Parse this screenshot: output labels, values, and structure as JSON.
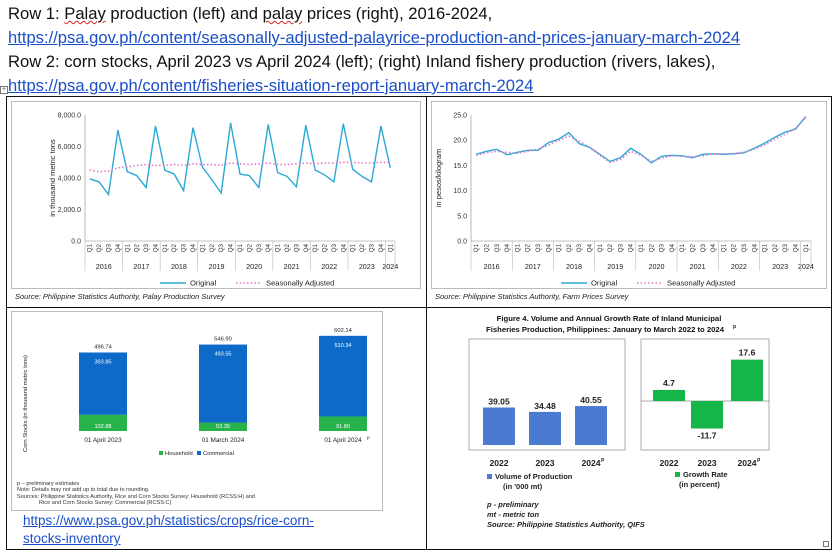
{
  "header": {
    "row1_prefix": "Row 1: ",
    "row1_word1": "Palay",
    "row1_mid": " production (left) and ",
    "row1_word2": "palay",
    "row1_suffix": " prices (right), 2016-2024,",
    "row1_link": "https://psa.gov.ph/content/seasonally-adjusted-palayrice-production-and-prices-january-march-2024",
    "row2_text": "Row 2: corn stocks, April 2023 vs April 2024 (left); (right) Inland fishery production (rivers, lakes),",
    "row2_link": "https://psa.gov.ph/content/fisheries-situation-report-january-march-2024"
  },
  "panel1": {
    "source": "Source: Philippine Statistics Authority, Palay Production Survey"
  },
  "panel2": {
    "source": "Source: Philippine Statistics Authority, Farm Prices Survey"
  },
  "panel3": {
    "footnote1": "p – preliminary estimates",
    "footnote2": "Note: Details may not add up to total due to rounding.",
    "footnote3": "Sources: Philippine Statistics Authority, Rice and Corn Stocks Survey: Household (RCSS:H) and",
    "footnote4": "Rice and Corn Stocks Survey: Commercial (RCSS:C)",
    "link_line1": "https://www.psa.gov.ph/statistics/crops/rice-corn-",
    "link_line2": "stocks-inventory"
  },
  "panel4": {
    "notes1": "p - preliminary",
    "notes2": "mt - metric ton",
    "notes3": "Source: Philippine Statistics Authority, QIFS"
  },
  "chart_data": [
    {
      "type": "line",
      "ylabel": "in thousand metric tons",
      "ylim": [
        0,
        8000
      ],
      "yticks": [
        "0.0",
        "2,000.0",
        "4,000.0",
        "6,000.0",
        "8,000.0"
      ],
      "quarters": [
        "Q1",
        "Q2",
        "Q3",
        "Q4"
      ],
      "years": [
        "2016",
        "2017",
        "2018",
        "2019",
        "2020",
        "2021",
        "2022",
        "2023",
        "2024"
      ],
      "grid": false,
      "legend_position": "bottom",
      "series": [
        {
          "name": "Original",
          "color": "#2aa9d6",
          "values": [
            3950,
            3750,
            2950,
            7050,
            4400,
            4150,
            3400,
            7300,
            4500,
            4250,
            3200,
            7200,
            4700,
            3900,
            3050,
            7500,
            4250,
            4150,
            3400,
            7400,
            4350,
            4100,
            3450,
            7350,
            4500,
            4200,
            3750,
            7450,
            4550,
            4100,
            3750,
            7300,
            4650
          ]
        },
        {
          "name": "Seasonally Adjusted",
          "color": "#e178c9",
          "values": [
            4500,
            4400,
            4450,
            4650,
            4700,
            4800,
            4850,
            4800,
            4800,
            4850,
            4800,
            4900,
            4850,
            4850,
            4800,
            4950,
            4900,
            4850,
            4900,
            4950,
            4850,
            4850,
            4900,
            4950,
            4900,
            4950,
            4950,
            5000,
            5000,
            4950,
            4950,
            5000,
            5000
          ]
        }
      ]
    },
    {
      "type": "line",
      "ylabel": "in pesos/kilogram",
      "ylim": [
        0,
        25
      ],
      "yticks": [
        "0.0",
        "5.0",
        "10.0",
        "15.0",
        "20.0",
        "25.0"
      ],
      "quarters": [
        "Q1",
        "Q2",
        "Q3",
        "Q4"
      ],
      "years": [
        "2016",
        "2017",
        "2018",
        "2019",
        "2020",
        "2021",
        "2022",
        "2023",
        "2024"
      ],
      "grid": false,
      "legend_position": "bottom",
      "series": [
        {
          "name": "Original",
          "color": "#2aa9d6",
          "values": [
            17.2,
            17.8,
            18.2,
            17.1,
            17.6,
            18.0,
            18.0,
            19.5,
            20.2,
            21.5,
            19.3,
            18.6,
            17.2,
            15.8,
            16.5,
            18.4,
            17.2,
            15.5,
            16.8,
            17.0,
            16.9,
            16.5,
            17.2,
            17.3,
            17.2,
            17.3,
            17.5,
            18.4,
            19.4,
            20.6,
            21.6,
            22.2,
            24.7
          ]
        },
        {
          "name": "Seasonally Adjusted",
          "color": "#e178c9",
          "values": [
            17.0,
            17.5,
            17.8,
            17.6,
            17.4,
            17.8,
            18.2,
            19.0,
            20.0,
            20.8,
            19.8,
            18.6,
            17.0,
            15.6,
            16.2,
            17.8,
            17.0,
            15.8,
            16.4,
            16.9,
            16.8,
            16.7,
            16.9,
            17.3,
            17.3,
            17.4,
            17.6,
            18.2,
            19.1,
            20.2,
            21.2,
            22.4,
            24.5
          ]
        }
      ]
    },
    {
      "type": "bar",
      "ylabel": "Corn Stocks (in thousand metric tons)",
      "categories": [
        "01 April 2023",
        "01 March 2024",
        "01 April 2024"
      ],
      "category_superscript": [
        "",
        "",
        "p"
      ],
      "totals": [
        "496.74",
        "546.90",
        "602.14"
      ],
      "legend_position": "bottom",
      "series": [
        {
          "name": "Household",
          "color": "#27b34a",
          "values": [
            102.88,
            53.35,
            91.8
          ],
          "labels": [
            "102.88",
            "53.35",
            "91.80"
          ]
        },
        {
          "name": "Commercial",
          "color": "#0d6ac9",
          "values": [
            393.85,
            493.55,
            510.34
          ],
          "labels": [
            "393.85",
            "493.55",
            "510.34"
          ]
        }
      ]
    },
    {
      "type": "bar",
      "title_line1": "Figure 4. Volume and Annual Growth Rate of Inland Municipal",
      "title_line2": "Fisheries Production, Philippines: January to March 2022 to 2024",
      "title_superscript": "p",
      "categories": [
        "2022",
        "2023",
        "2024"
      ],
      "category_superscript": [
        "",
        "",
        "p"
      ],
      "series": [
        {
          "name": "Volume of Production",
          "name_line2": "(in '000 mt)",
          "color": "#4a7bd0",
          "values": [
            39.05,
            34.48,
            40.55
          ],
          "labels": [
            "39.05",
            "34.48",
            "40.55"
          ]
        },
        {
          "name": "Growth Rate",
          "name_line2": "(in percent)",
          "color": "#16b548",
          "values": [
            4.7,
            -11.7,
            17.6
          ],
          "labels": [
            "4.7",
            "-11.7",
            "17.6"
          ]
        }
      ]
    }
  ]
}
